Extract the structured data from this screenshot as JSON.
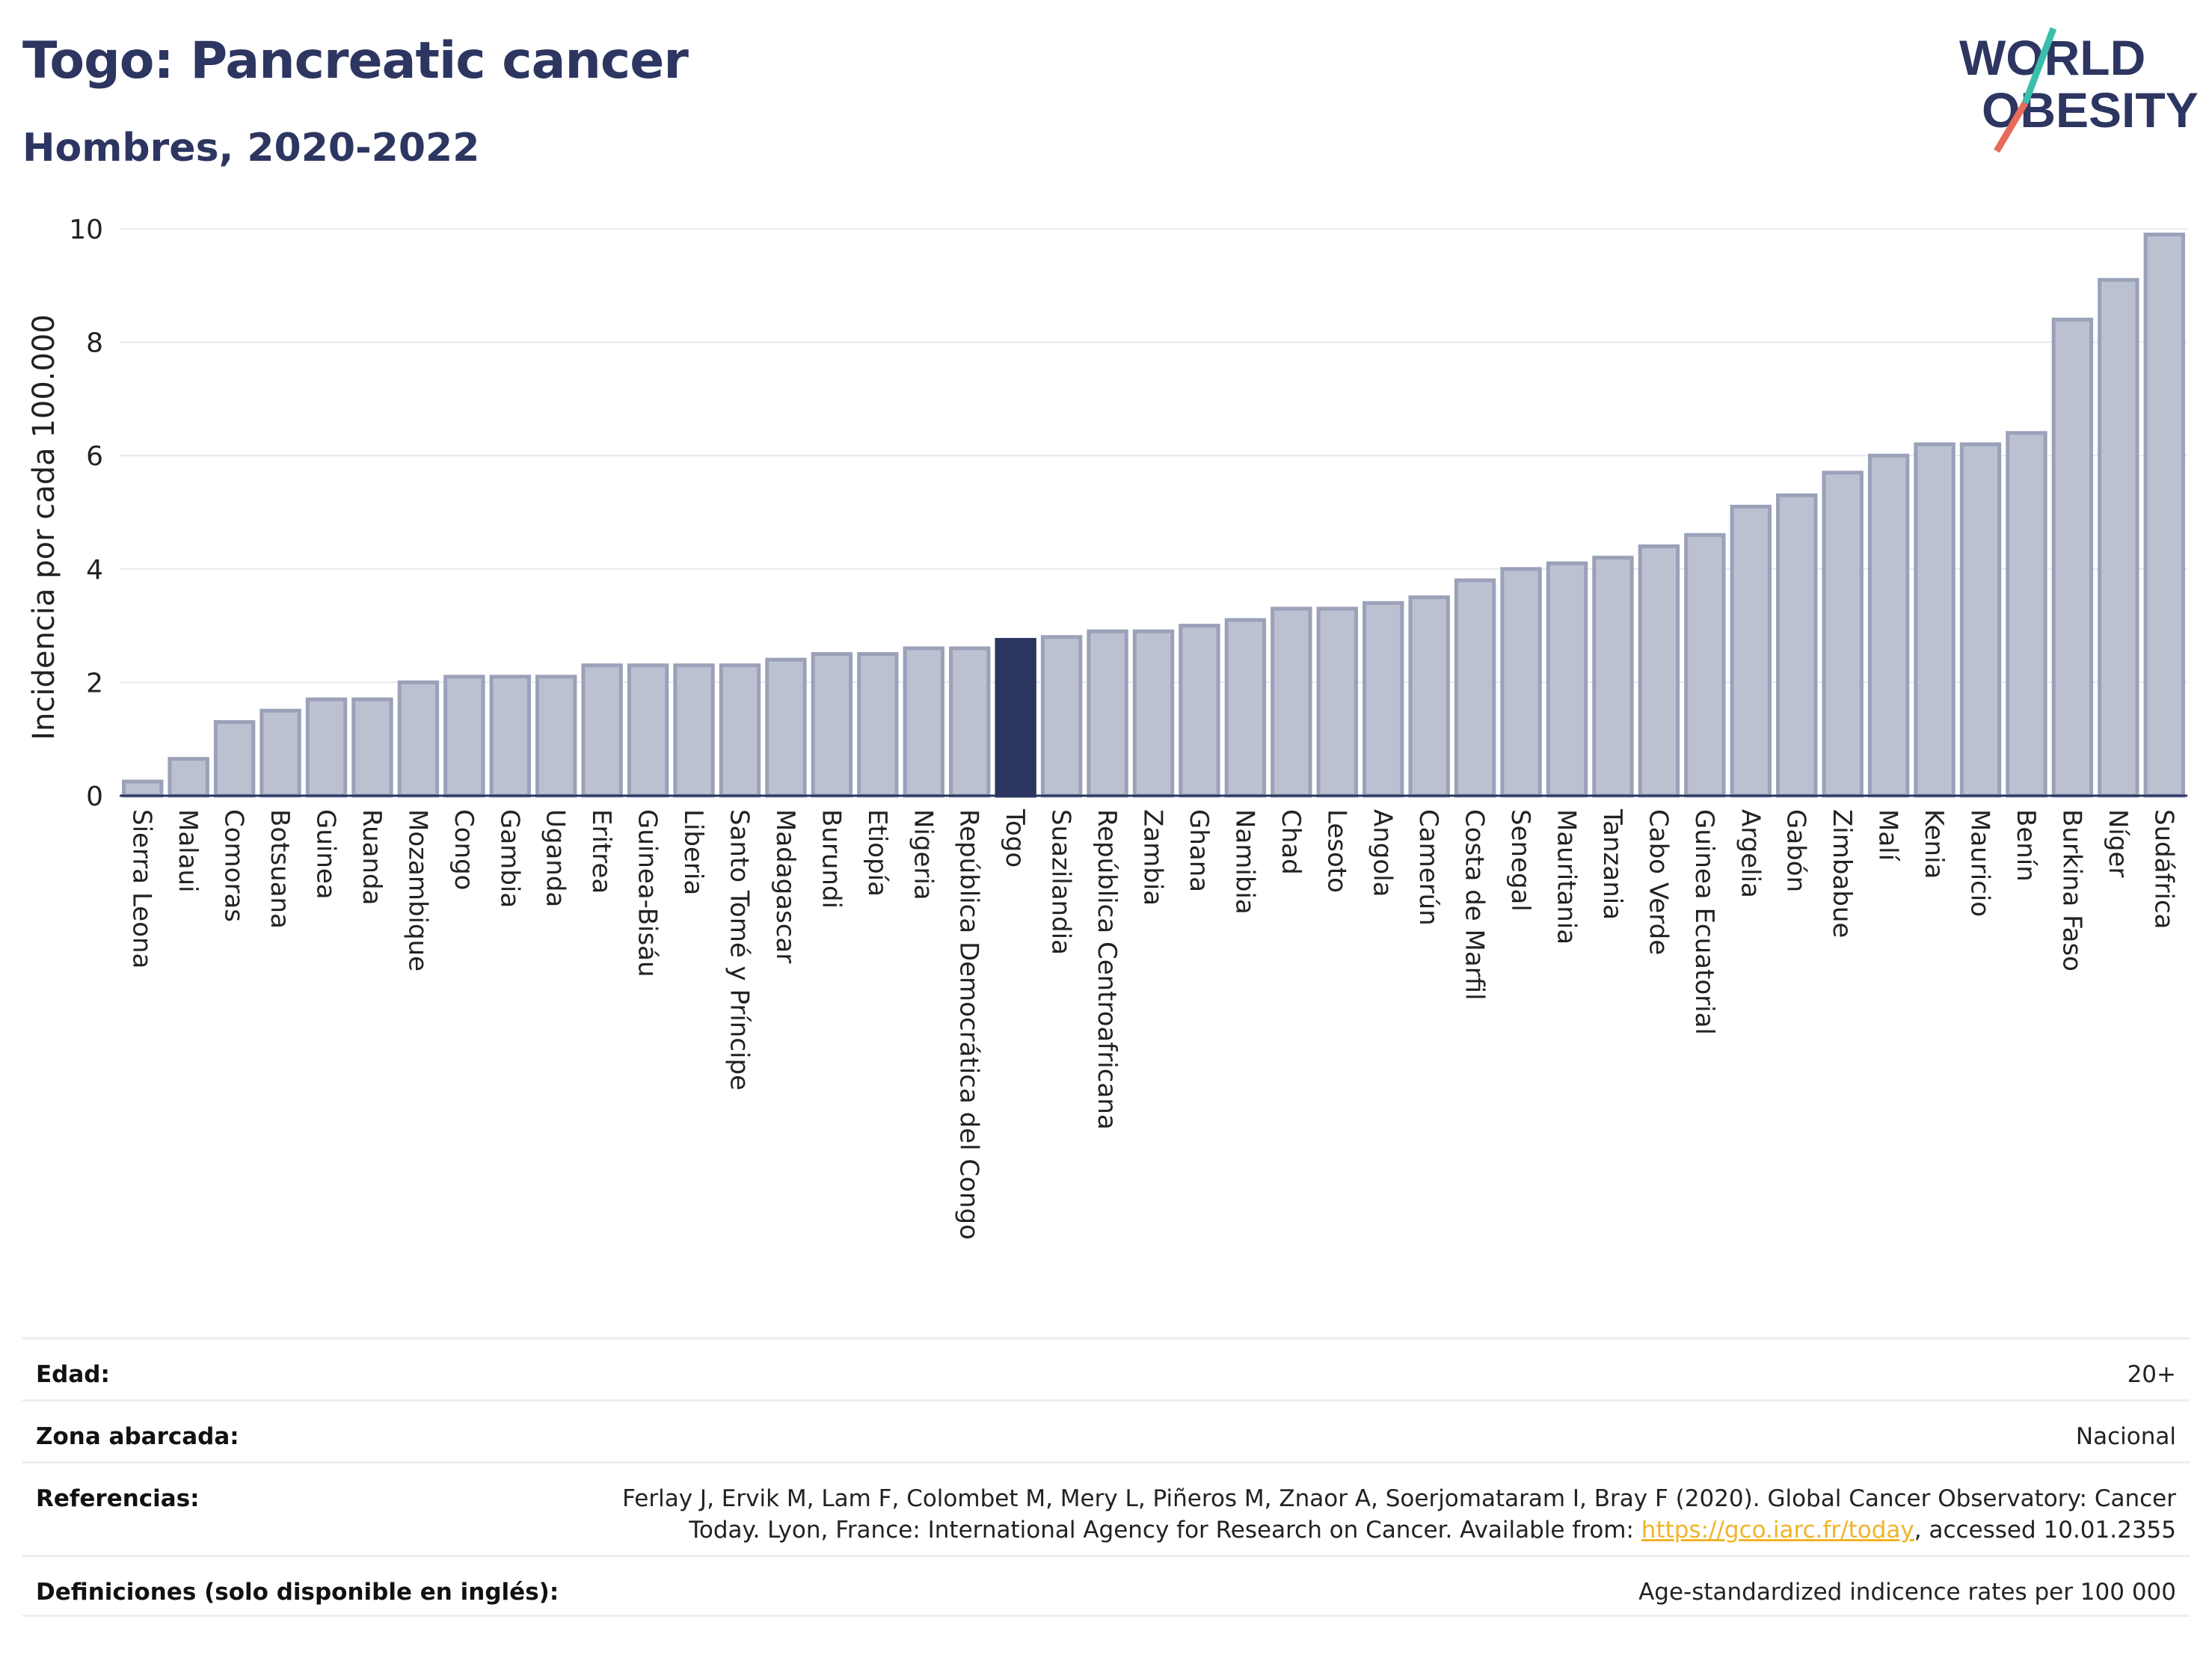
{
  "header": {
    "title": "Togo: Pancreatic cancer",
    "subtitle": "Hombres, 2020-2022"
  },
  "logo": {
    "line1": "WORLD",
    "line2": "OBESITY",
    "name": "world-obesity-logo"
  },
  "chart_data": {
    "type": "bar",
    "ylabel": "Incidencia por cada 100.000",
    "xlabel": "",
    "ylim": [
      0,
      10
    ],
    "yticks": [
      0,
      2,
      4,
      6,
      8,
      10
    ],
    "grid": true,
    "highlight": "Togo",
    "colors": {
      "bar": "#bcc1d1",
      "bar_edge": "#9aa1b8",
      "highlight": "#2d3561"
    },
    "categories": [
      "Sierra Leona",
      "Malaui",
      "Comoras",
      "Botsuana",
      "Guinea",
      "Ruanda",
      "Mozambique",
      "Congo",
      "Gambia",
      "Uganda",
      "Eritrea",
      "Guinea-Bisáu",
      "Liberia",
      "Santo Tomé y Príncipe",
      "Madagascar",
      "Burundi",
      "Etiopía",
      "Nigeria",
      "República Democrática del Congo",
      "Togo",
      "Suazilandia",
      "República Centroafricana",
      "Zambia",
      "Ghana",
      "Namibia",
      "Chad",
      "Lesoto",
      "Angola",
      "Camerún",
      "Costa de Marfil",
      "Senegal",
      "Mauritania",
      "Tanzania",
      "Cabo Verde",
      "Guinea Ecuatorial",
      "Argelia",
      "Gabón",
      "Zimbabue",
      "Malí",
      "Kenia",
      "Mauricio",
      "Benín",
      "Burkina Faso",
      "Níger",
      "Sudáfrica"
    ],
    "values": [
      0.25,
      0.65,
      1.3,
      1.5,
      1.7,
      1.7,
      2.0,
      2.1,
      2.1,
      2.1,
      2.3,
      2.3,
      2.3,
      2.3,
      2.4,
      2.5,
      2.5,
      2.6,
      2.6,
      2.75,
      2.8,
      2.9,
      2.9,
      3.0,
      3.1,
      3.3,
      3.3,
      3.4,
      3.5,
      3.8,
      4.0,
      4.1,
      4.2,
      4.4,
      4.6,
      5.1,
      5.3,
      5.7,
      6.0,
      6.2,
      6.2,
      6.4,
      8.4,
      9.1,
      9.9
    ]
  },
  "meta": {
    "age_label": "Edad:",
    "age_value": "20+",
    "area_label": "Zona abarcada:",
    "area_value": "Nacional",
    "refs_label": "Referencias:",
    "refs_line1": "Ferlay J, Ervik M, Lam F, Colombet M, Mery L, Piñeros M, Znaor A, Soerjomataram I, Bray F (2020). Global Cancer Observatory: Cancer",
    "refs_line2_pre": "Today. Lyon, France: International Agency for Research on Cancer. Available from: ",
    "refs_link": "https://gco.iarc.fr/today",
    "refs_line2_post": ", accessed 10.01.2355",
    "defs_label": "Definiciones (solo disponible en inglés):",
    "defs_value": "Age-standardized indicence rates per 100 000"
  }
}
